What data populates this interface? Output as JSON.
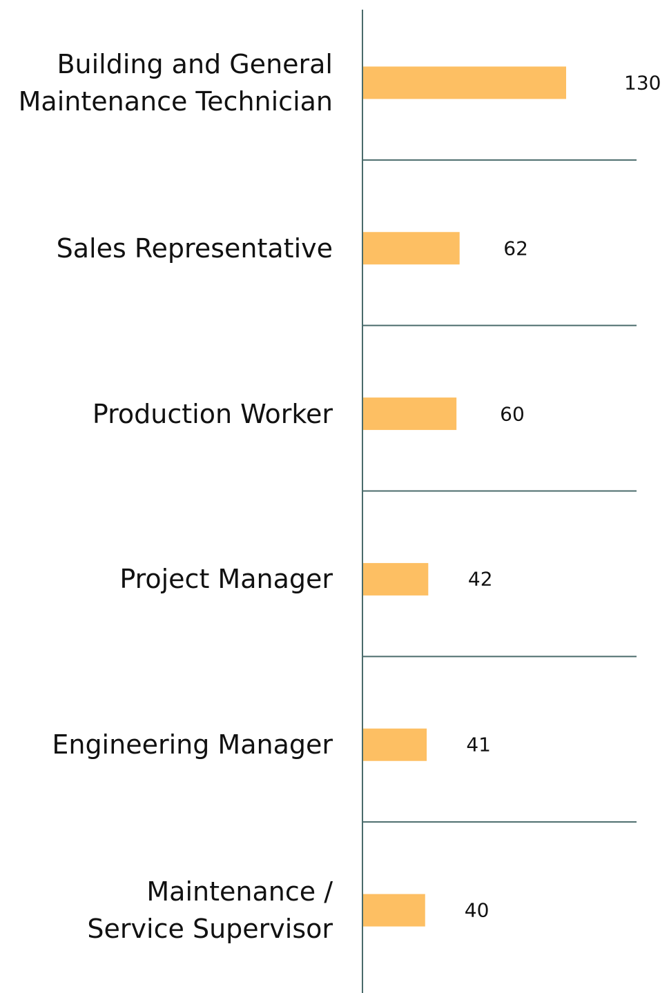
{
  "chart_data": {
    "type": "bar",
    "orientation": "horizontal",
    "categories": [
      "Building and General\nMaintenance Technician",
      "Sales Representative",
      "Production Worker",
      "Project Manager",
      "Engineering Manager",
      "Maintenance /\nService Supervisor"
    ],
    "values": [
      130,
      62,
      60,
      42,
      41,
      40
    ],
    "color": "#fdbf63"
  }
}
